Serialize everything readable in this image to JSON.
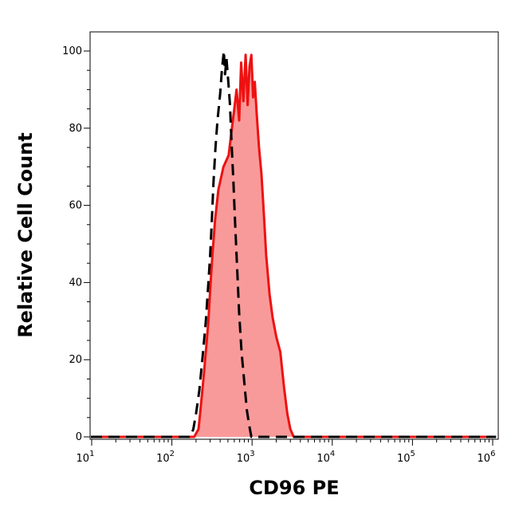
{
  "chart_data": {
    "type": "area",
    "xlabel": "CD96 PE",
    "ylabel": "Relative Cell Count",
    "x_scale": "log",
    "xlim": [
      10,
      1000000
    ],
    "ylim": [
      0,
      100
    ],
    "x_ticks": [
      {
        "value": 10,
        "base": "10",
        "exp": "1"
      },
      {
        "value": 100,
        "base": "10",
        "exp": "2"
      },
      {
        "value": 1000,
        "base": "10",
        "exp": "3"
      },
      {
        "value": 10000,
        "base": "10",
        "exp": "4"
      },
      {
        "value": 100000,
        "base": "10",
        "exp": "5"
      },
      {
        "value": 1000000,
        "base": "10",
        "exp": "6"
      }
    ],
    "y_ticks": [
      {
        "value": 0,
        "label": "0"
      },
      {
        "value": 20,
        "label": "20"
      },
      {
        "value": 40,
        "label": "40"
      },
      {
        "value": 60,
        "label": "60"
      },
      {
        "value": 80,
        "label": "80"
      },
      {
        "value": 100,
        "label": "100"
      }
    ],
    "grid": false,
    "legend": "none",
    "series": [
      {
        "style": "filled-solid",
        "color": "#ee1111",
        "fill": "#f99a9a",
        "points": [
          [
            8,
            0
          ],
          [
            100,
            0
          ],
          [
            190,
            0
          ],
          [
            215,
            2
          ],
          [
            225,
            6
          ],
          [
            240,
            12
          ],
          [
            255,
            18
          ],
          [
            270,
            24
          ],
          [
            285,
            30
          ],
          [
            300,
            38
          ],
          [
            320,
            47
          ],
          [
            345,
            56
          ],
          [
            380,
            64
          ],
          [
            440,
            70
          ],
          [
            510,
            73
          ],
          [
            560,
            80
          ],
          [
            600,
            85
          ],
          [
            640,
            90
          ],
          [
            690,
            82
          ],
          [
            730,
            97
          ],
          [
            780,
            87
          ],
          [
            830,
            99
          ],
          [
            880,
            86
          ],
          [
            930,
            96
          ],
          [
            980,
            99
          ],
          [
            1030,
            88
          ],
          [
            1080,
            92
          ],
          [
            1140,
            84
          ],
          [
            1220,
            75
          ],
          [
            1310,
            68
          ],
          [
            1400,
            58
          ],
          [
            1500,
            47
          ],
          [
            1650,
            37
          ],
          [
            1800,
            31
          ],
          [
            2000,
            26
          ],
          [
            2250,
            22
          ],
          [
            2500,
            13
          ],
          [
            2750,
            6
          ],
          [
            3000,
            2
          ],
          [
            3300,
            0
          ],
          [
            5000,
            0
          ],
          [
            100000,
            0
          ],
          [
            1100000,
            0
          ]
        ]
      },
      {
        "style": "dashed",
        "color": "#000000",
        "points": [
          [
            8,
            0
          ],
          [
            100,
            0
          ],
          [
            170,
            0
          ],
          [
            185,
            2
          ],
          [
            200,
            6
          ],
          [
            220,
            12
          ],
          [
            240,
            20
          ],
          [
            265,
            30
          ],
          [
            285,
            40
          ],
          [
            300,
            47
          ],
          [
            315,
            56
          ],
          [
            330,
            66
          ],
          [
            350,
            75
          ],
          [
            370,
            82
          ],
          [
            400,
            89
          ],
          [
            420,
            95
          ],
          [
            445,
            100
          ],
          [
            460,
            94
          ],
          [
            480,
            98
          ],
          [
            505,
            92
          ],
          [
            530,
            86
          ],
          [
            555,
            76
          ],
          [
            585,
            66
          ],
          [
            615,
            55
          ],
          [
            650,
            44
          ],
          [
            690,
            32
          ],
          [
            740,
            22
          ],
          [
            800,
            14
          ],
          [
            860,
            7
          ],
          [
            920,
            3
          ],
          [
            980,
            0
          ],
          [
            2000,
            0
          ],
          [
            100000,
            0
          ],
          [
            1100000,
            0
          ]
        ]
      }
    ]
  }
}
